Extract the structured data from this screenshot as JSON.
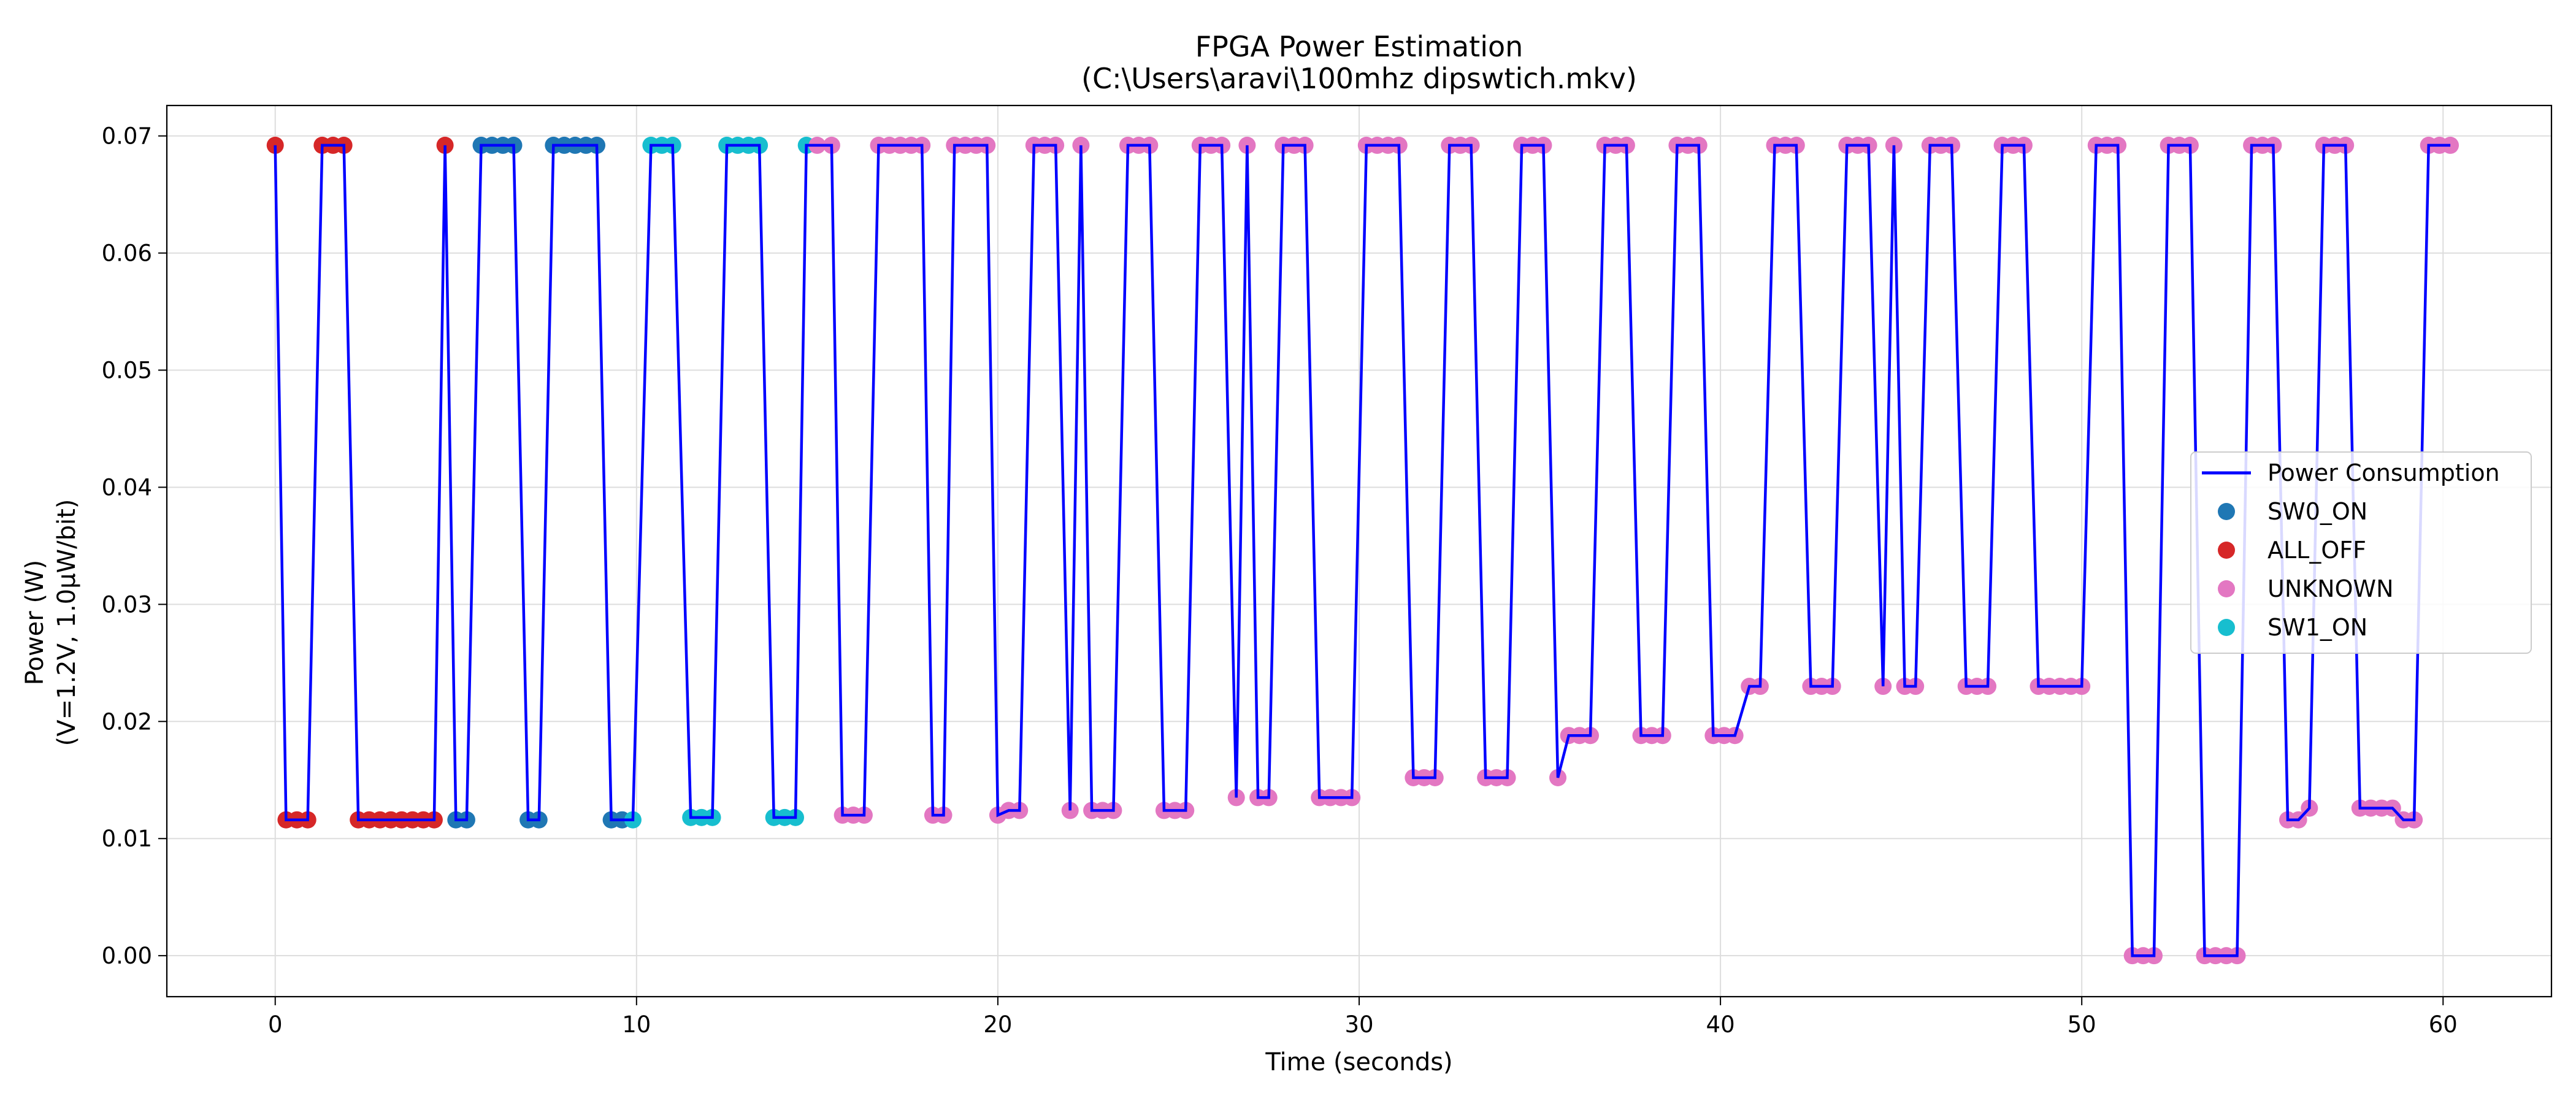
{
  "chart_data": {
    "type": "line",
    "title": "FPGA Power Estimation",
    "subtitle": "(C:\\Users\\aravi\\100mhz dipswtich.mkv)",
    "xlabel": "Time (seconds)",
    "ylabel": "Power (W)",
    "ylabel2": "(V=1.2V, 1.0µW/bit)",
    "xlim": [
      -3,
      63
    ],
    "ylim": [
      -0.0035,
      0.0726
    ],
    "xticks": [
      0,
      10,
      20,
      30,
      40,
      50,
      60
    ],
    "yticks": [
      0.0,
      0.01,
      0.02,
      0.03,
      0.04,
      0.05,
      0.06,
      0.07
    ],
    "ytick_labels": [
      "0.00",
      "0.01",
      "0.02",
      "0.03",
      "0.04",
      "0.05",
      "0.06",
      "0.07"
    ],
    "grid": true,
    "legend_position": "center-right",
    "line_series": {
      "name": "Power Consumption",
      "color": "#0000ff"
    },
    "marker_series": [
      {
        "name": "SW0_ON",
        "color": "#1f77b4"
      },
      {
        "name": "ALL_OFF",
        "color": "#d62728"
      },
      {
        "name": "UNKNOWN",
        "color": "#e377c2"
      },
      {
        "name": "SW1_ON",
        "color": "#17becf"
      }
    ],
    "legend_order": [
      "Power Consumption",
      "SW0_ON",
      "ALL_OFF",
      "UNKNOWN",
      "SW1_ON"
    ],
    "segments": [
      {
        "label": "ALL_OFF",
        "points": [
          [
            0,
            0.0692
          ],
          [
            0.3,
            0.0116
          ],
          [
            0.6,
            0.0116
          ],
          [
            0.9,
            0.0116
          ],
          [
            1.3,
            0.0692
          ],
          [
            1.6,
            0.0692
          ],
          [
            1.9,
            0.0692
          ],
          [
            2.3,
            0.0116
          ],
          [
            2.6,
            0.0116
          ],
          [
            2.9,
            0.0116
          ],
          [
            3.2,
            0.0116
          ],
          [
            3.5,
            0.0116
          ],
          [
            3.8,
            0.0116
          ],
          [
            4.1,
            0.0116
          ],
          [
            4.4,
            0.0116
          ],
          [
            4.7,
            0.0692
          ]
        ]
      },
      {
        "label": "SW0_ON",
        "points": [
          [
            5.0,
            0.0116
          ],
          [
            5.3,
            0.0116
          ],
          [
            5.7,
            0.0692
          ],
          [
            6.0,
            0.0692
          ],
          [
            6.3,
            0.0692
          ],
          [
            6.6,
            0.0692
          ],
          [
            7.0,
            0.0116
          ],
          [
            7.3,
            0.0116
          ],
          [
            7.7,
            0.0692
          ],
          [
            8.0,
            0.0692
          ],
          [
            8.3,
            0.0692
          ],
          [
            8.6,
            0.0692
          ],
          [
            8.9,
            0.0692
          ],
          [
            9.3,
            0.0116
          ],
          [
            9.6,
            0.0116
          ]
        ]
      },
      {
        "label": "SW1_ON",
        "points": [
          [
            9.9,
            0.0116
          ],
          [
            10.4,
            0.0692
          ],
          [
            10.7,
            0.0692
          ],
          [
            11.0,
            0.0692
          ],
          [
            11.5,
            0.0118
          ],
          [
            11.8,
            0.0118
          ],
          [
            12.1,
            0.0118
          ],
          [
            12.5,
            0.0692
          ],
          [
            12.8,
            0.0692
          ],
          [
            13.1,
            0.0692
          ],
          [
            13.4,
            0.0692
          ],
          [
            13.8,
            0.0118
          ],
          [
            14.1,
            0.0118
          ],
          [
            14.4,
            0.0118
          ],
          [
            14.7,
            0.0692
          ]
        ]
      },
      {
        "label": "UNKNOWN",
        "points": [
          [
            15.0,
            0.0692
          ],
          [
            15.4,
            0.0692
          ],
          [
            15.7,
            0.012
          ],
          [
            16.0,
            0.012
          ],
          [
            16.3,
            0.012
          ],
          [
            16.7,
            0.0692
          ],
          [
            17.0,
            0.0692
          ],
          [
            17.3,
            0.0692
          ],
          [
            17.6,
            0.0692
          ],
          [
            17.9,
            0.0692
          ],
          [
            18.2,
            0.012
          ],
          [
            18.5,
            0.012
          ],
          [
            18.8,
            0.0692
          ],
          [
            19.1,
            0.0692
          ],
          [
            19.4,
            0.0692
          ],
          [
            19.7,
            0.0692
          ],
          [
            20.0,
            0.012
          ],
          [
            20.3,
            0.0124
          ],
          [
            20.6,
            0.0124
          ],
          [
            21.0,
            0.0692
          ],
          [
            21.3,
            0.0692
          ],
          [
            21.6,
            0.0692
          ],
          [
            22.0,
            0.0124
          ],
          [
            22.3,
            0.0692
          ],
          [
            22.6,
            0.0124
          ],
          [
            22.9,
            0.0124
          ],
          [
            23.2,
            0.0124
          ],
          [
            23.6,
            0.0692
          ],
          [
            23.9,
            0.0692
          ],
          [
            24.2,
            0.0692
          ],
          [
            24.6,
            0.0124
          ],
          [
            24.9,
            0.0124
          ],
          [
            25.2,
            0.0124
          ],
          [
            25.6,
            0.0692
          ],
          [
            25.9,
            0.0692
          ],
          [
            26.2,
            0.0692
          ],
          [
            26.6,
            0.0135
          ],
          [
            26.9,
            0.0692
          ],
          [
            27.2,
            0.0135
          ],
          [
            27.5,
            0.0135
          ],
          [
            27.9,
            0.0692
          ],
          [
            28.2,
            0.0692
          ],
          [
            28.5,
            0.0692
          ],
          [
            28.9,
            0.0135
          ],
          [
            29.2,
            0.0135
          ],
          [
            29.5,
            0.0135
          ],
          [
            29.8,
            0.0135
          ],
          [
            30.2,
            0.0692
          ],
          [
            30.5,
            0.0692
          ],
          [
            30.8,
            0.0692
          ],
          [
            31.1,
            0.0692
          ],
          [
            31.5,
            0.0152
          ],
          [
            31.8,
            0.0152
          ],
          [
            32.1,
            0.0152
          ],
          [
            32.5,
            0.0692
          ],
          [
            32.8,
            0.0692
          ],
          [
            33.1,
            0.0692
          ],
          [
            33.5,
            0.0152
          ],
          [
            33.8,
            0.0152
          ],
          [
            34.1,
            0.0152
          ],
          [
            34.5,
            0.0692
          ],
          [
            34.8,
            0.0692
          ],
          [
            35.1,
            0.0692
          ],
          [
            35.5,
            0.0152
          ],
          [
            35.8,
            0.0188
          ],
          [
            36.1,
            0.0188
          ],
          [
            36.4,
            0.0188
          ],
          [
            36.8,
            0.0692
          ],
          [
            37.1,
            0.0692
          ],
          [
            37.4,
            0.0692
          ],
          [
            37.8,
            0.0188
          ],
          [
            38.1,
            0.0188
          ],
          [
            38.4,
            0.0188
          ],
          [
            38.8,
            0.0692
          ],
          [
            39.1,
            0.0692
          ],
          [
            39.4,
            0.0692
          ],
          [
            39.8,
            0.0188
          ],
          [
            40.1,
            0.0188
          ],
          [
            40.4,
            0.0188
          ],
          [
            40.8,
            0.023
          ],
          [
            41.1,
            0.023
          ],
          [
            41.5,
            0.0692
          ],
          [
            41.8,
            0.0692
          ],
          [
            42.1,
            0.0692
          ],
          [
            42.5,
            0.023
          ],
          [
            42.8,
            0.023
          ],
          [
            43.1,
            0.023
          ],
          [
            43.5,
            0.0692
          ],
          [
            43.8,
            0.0692
          ],
          [
            44.1,
            0.0692
          ],
          [
            44.5,
            0.023
          ],
          [
            44.8,
            0.0692
          ],
          [
            45.1,
            0.023
          ],
          [
            45.4,
            0.023
          ],
          [
            45.8,
            0.0692
          ],
          [
            46.1,
            0.0692
          ],
          [
            46.4,
            0.0692
          ],
          [
            46.8,
            0.023
          ],
          [
            47.1,
            0.023
          ],
          [
            47.4,
            0.023
          ],
          [
            47.8,
            0.0692
          ],
          [
            48.1,
            0.0692
          ],
          [
            48.4,
            0.0692
          ],
          [
            48.8,
            0.023
          ],
          [
            49.1,
            0.023
          ],
          [
            49.4,
            0.023
          ],
          [
            49.7,
            0.023
          ],
          [
            50.0,
            0.023
          ],
          [
            50.4,
            0.0692
          ],
          [
            50.7,
            0.0692
          ],
          [
            51.0,
            0.0692
          ],
          [
            51.4,
            0.0
          ],
          [
            51.7,
            0.0
          ],
          [
            52.0,
            0.0
          ],
          [
            52.4,
            0.0692
          ],
          [
            52.7,
            0.0692
          ],
          [
            53.0,
            0.0692
          ],
          [
            53.4,
            0.0
          ],
          [
            53.7,
            0.0
          ],
          [
            54.0,
            0.0
          ],
          [
            54.3,
            0.0
          ],
          [
            54.7,
            0.0692
          ],
          [
            55.0,
            0.0692
          ],
          [
            55.3,
            0.0692
          ],
          [
            55.7,
            0.0116
          ],
          [
            56.0,
            0.0116
          ],
          [
            56.3,
            0.0126
          ],
          [
            56.7,
            0.0692
          ],
          [
            57.0,
            0.0692
          ],
          [
            57.3,
            0.0692
          ],
          [
            57.7,
            0.0126
          ],
          [
            58.0,
            0.0126
          ],
          [
            58.3,
            0.0126
          ],
          [
            58.6,
            0.0126
          ],
          [
            58.9,
            0.0116
          ],
          [
            59.2,
            0.0116
          ],
          [
            59.6,
            0.0692
          ],
          [
            59.9,
            0.0692
          ],
          [
            60.2,
            0.0692
          ]
        ]
      }
    ]
  }
}
